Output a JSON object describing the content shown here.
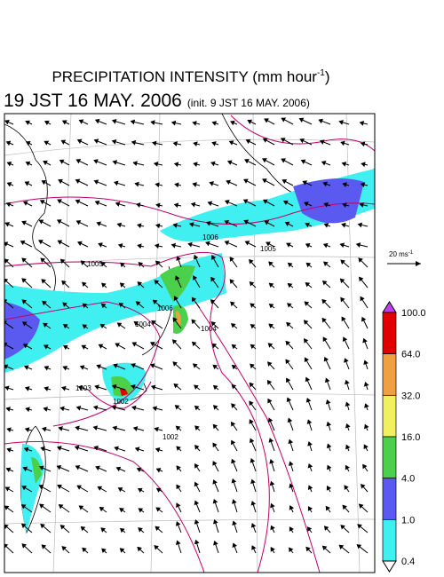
{
  "header": {
    "title": "PRECIPITATION INTENSITY (mm hour",
    "title_sup": "-1",
    "title_end": ")",
    "time": "19 JST 16 MAY. 2006",
    "init": "(init. 9 JST 16 MAY. 2006)"
  },
  "scale": {
    "label": "20 ms",
    "sup": "-1"
  },
  "colorbar": {
    "labels": [
      "100.0",
      "64.0",
      "32.0",
      "16.0",
      "4.0",
      "1.0",
      "0.4"
    ]
  },
  "contour_labels": [
    "1006",
    "1005",
    "1005",
    "1006",
    "1004",
    "1004",
    "1003",
    "1002",
    "1002"
  ]
}
